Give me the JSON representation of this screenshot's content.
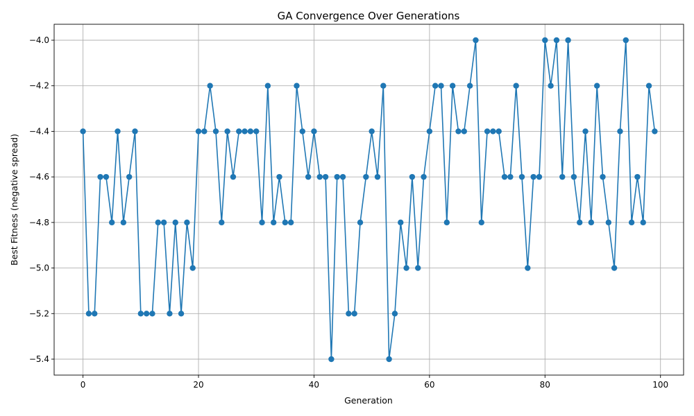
{
  "colors": {
    "series": "#1f77b4",
    "grid": "#b0b0b0",
    "axis": "#000000"
  },
  "chart_data": {
    "type": "line",
    "title": "GA Convergence Over Generations",
    "xlabel": "Generation",
    "ylabel": "Best Fitness (negative spread)",
    "xlim": [
      -5,
      104
    ],
    "ylim": [
      -5.47,
      -3.93
    ],
    "xticks": [
      0,
      20,
      40,
      60,
      80,
      100
    ],
    "xtick_labels": [
      "0",
      "20",
      "40",
      "60",
      "80",
      "100"
    ],
    "yticks": [
      -5.4,
      -5.2,
      -5.0,
      -4.8,
      -4.6,
      -4.4,
      -4.2,
      -4.0
    ],
    "ytick_labels": [
      "−5.4",
      "−5.2",
      "−5.0",
      "−4.8",
      "−4.6",
      "−4.4",
      "−4.2",
      "−4.0"
    ],
    "grid": true,
    "marker": "circle",
    "series": [
      {
        "x": [
          0,
          1,
          2,
          3,
          4,
          5,
          6,
          7,
          8,
          9,
          10,
          11,
          12,
          13,
          14,
          15,
          16,
          17,
          18,
          19,
          20,
          21,
          22,
          23,
          24,
          25,
          26,
          27,
          28,
          29,
          30,
          31,
          32,
          33,
          34,
          35,
          36,
          37,
          38,
          39,
          40,
          41,
          42,
          43,
          44,
          45,
          46,
          47,
          48,
          49,
          50,
          51,
          52,
          53,
          54,
          55,
          56,
          57,
          58,
          59,
          60,
          61,
          62,
          63,
          64,
          65,
          66,
          67,
          68,
          69,
          70,
          71,
          72,
          73,
          74,
          75,
          76,
          77,
          78,
          79,
          80,
          81,
          82,
          83,
          84,
          85,
          86,
          87,
          88,
          89,
          90,
          91,
          92,
          93,
          94,
          95,
          96,
          97,
          98,
          99
        ],
        "values": [
          -4.4,
          -5.2,
          -5.2,
          -4.6,
          -4.6,
          -4.8,
          -4.4,
          -4.8,
          -4.6,
          -4.4,
          -5.2,
          -5.2,
          -5.2,
          -4.8,
          -4.8,
          -5.2,
          -4.8,
          -5.2,
          -4.8,
          -5.0,
          -4.4,
          -4.4,
          -4.2,
          -4.4,
          -4.8,
          -4.4,
          -4.6,
          -4.4,
          -4.4,
          -4.4,
          -4.4,
          -4.8,
          -4.2,
          -4.8,
          -4.6,
          -4.8,
          -4.8,
          -4.2,
          -4.4,
          -4.6,
          -4.4,
          -4.6,
          -4.6,
          -5.4,
          -4.6,
          -4.6,
          -5.2,
          -5.2,
          -4.8,
          -4.6,
          -4.4,
          -4.6,
          -4.2,
          -5.4,
          -5.2,
          -4.8,
          -5.0,
          -4.6,
          -5.0,
          -4.6,
          -4.4,
          -4.2,
          -4.2,
          -4.8,
          -4.2,
          -4.4,
          -4.4,
          -4.2,
          -4.0,
          -4.8,
          -4.4,
          -4.4,
          -4.4,
          -4.6,
          -4.6,
          -4.2,
          -4.6,
          -5.0,
          -4.6,
          -4.6,
          -4.0,
          -4.2,
          -4.0,
          -4.6,
          -4.0,
          -4.6,
          -4.8,
          -4.4,
          -4.8,
          -4.2,
          -4.6,
          -4.8,
          -5.0,
          -4.4,
          -4.0,
          -4.8,
          -4.6,
          -4.8,
          -4.2,
          -4.4
        ]
      }
    ]
  }
}
